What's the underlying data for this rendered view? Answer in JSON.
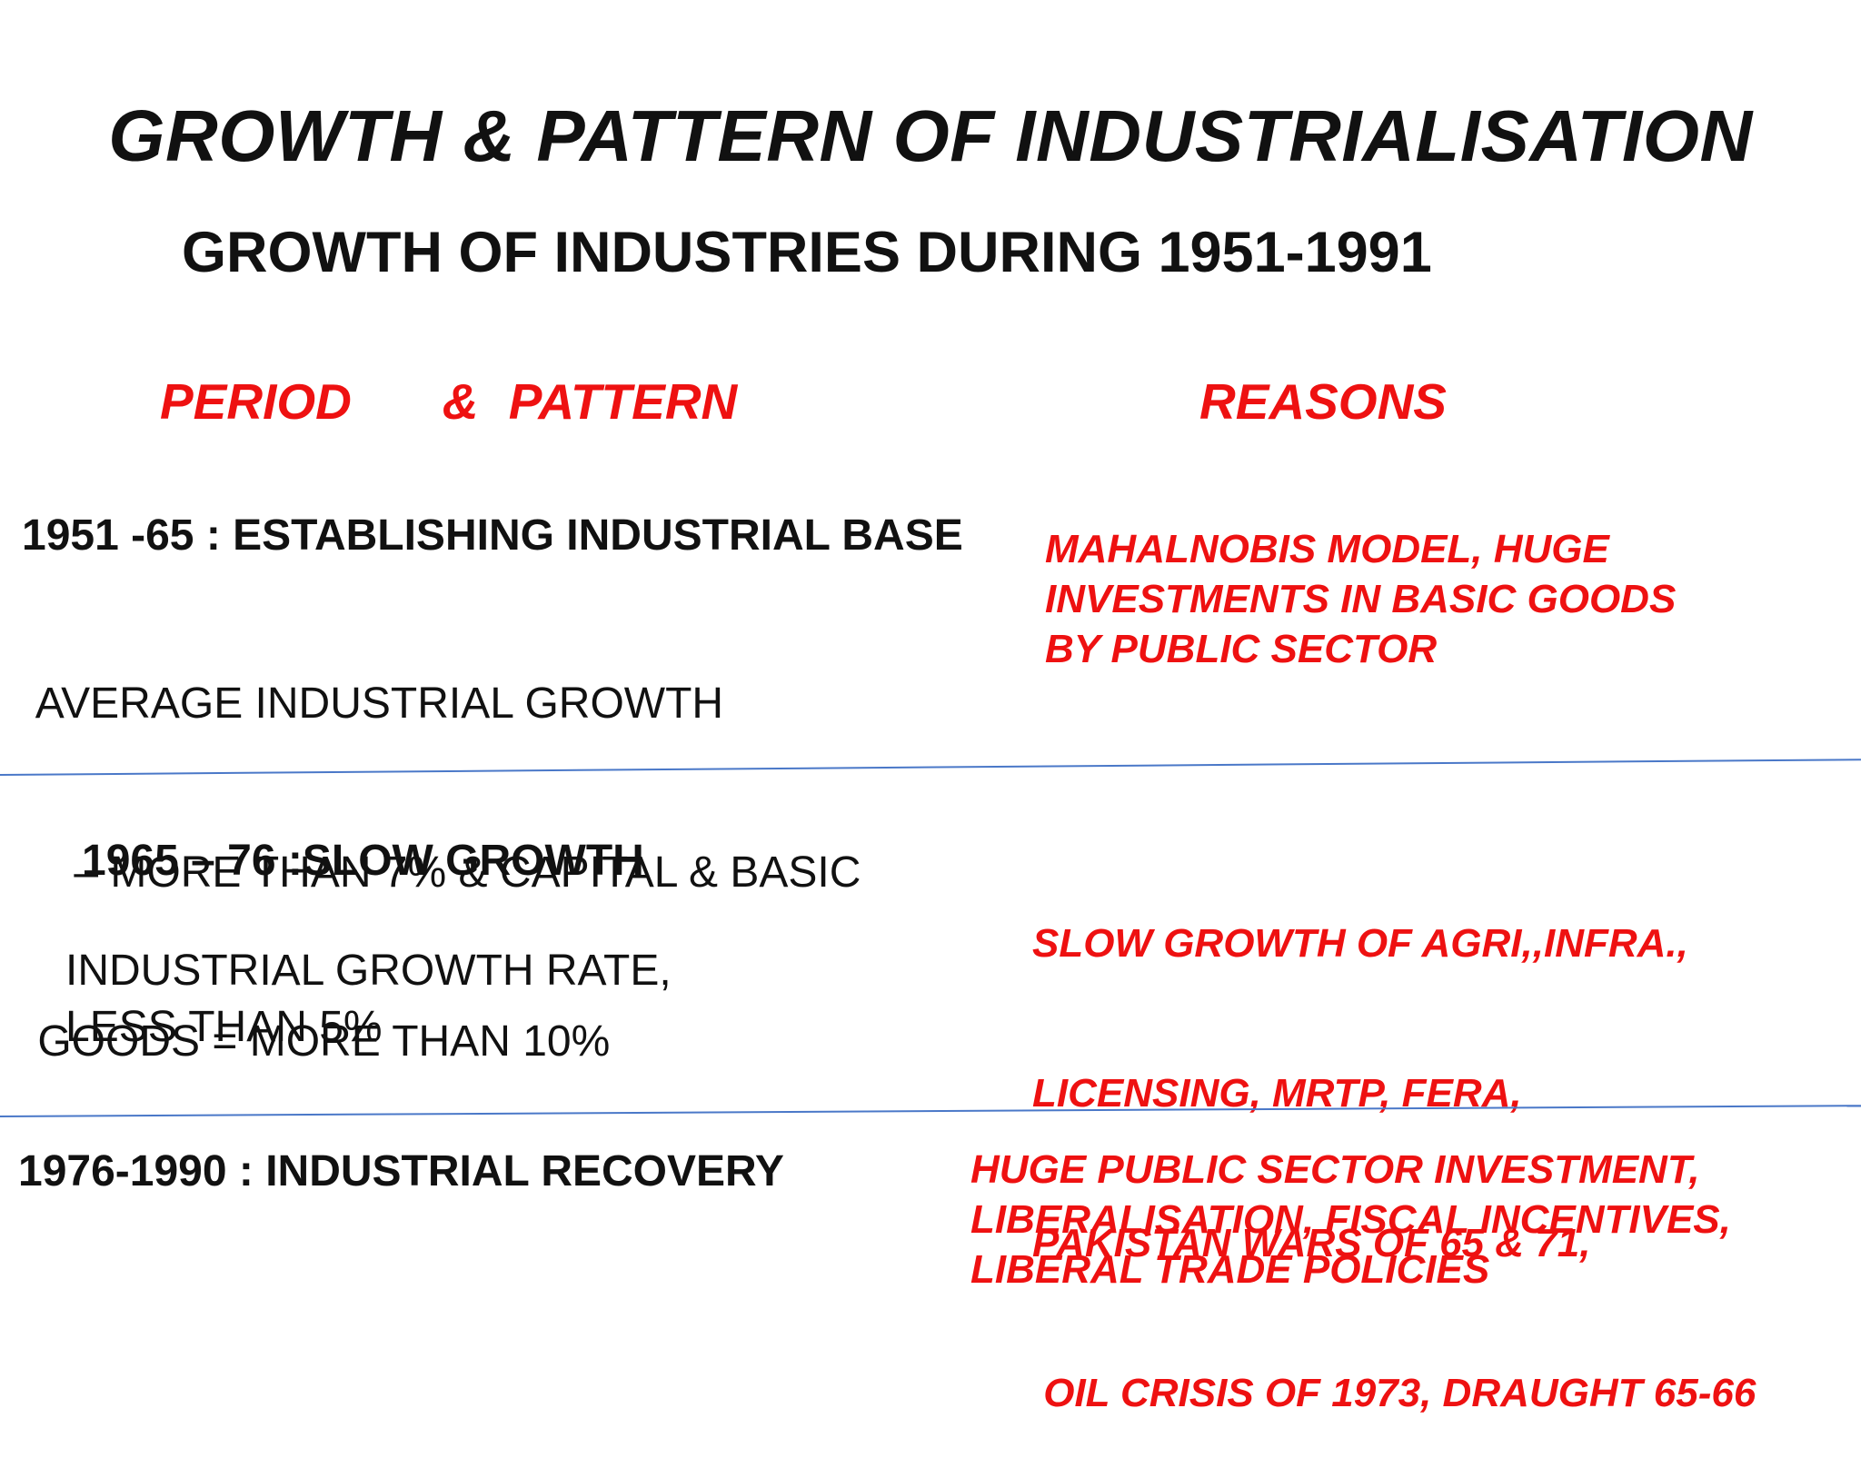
{
  "title": "GROWTH & PATTERN OF INDUSTRIALISATION",
  "subtitle": "GROWTH OF INDUSTRIES DURING 1951-1991",
  "columns": {
    "left": "PERIOD   & PATTERN",
    "right": "REASONS"
  },
  "sections": [
    {
      "heading": "1951 -65 : ESTABLISHING INDUSTRIAL BASE",
      "body": [
        " AVERAGE INDUSTRIAL GROWTH",
        "    – MORE THAN 7% & CAPITAL & BASIC",
        " GOODS = MORE THAN 10%"
      ],
      "reasons": [
        "MAHALNOBIS MODEL, HUGE",
        "INVESTMENTS IN BASIC GOODS",
        "BY PUBLIC SECTOR"
      ]
    },
    {
      "heading": "1965 – 76 :SLOW GROWTH",
      "body": [
        "INDUSTRIAL GROWTH RATE,",
        "LESS THAN 5%"
      ],
      "reasons": [
        "SLOW GROWTH OF AGRI,,INFRA.,",
        "LICENSING, MRTP, FERA,",
        "PAKISTAN WARS OF 65 & 71,",
        " OIL CRISIS OF 1973, DRAUGHT 65-66"
      ]
    },
    {
      "heading": "1976-1990 : INDUSTRIAL RECOVERY",
      "body": [],
      "reasons": [
        "HUGE PUBLIC SECTOR INVESTMENT,",
        "LIBERALISATION, FISCAL INCENTIVES,",
        "LIBERAL TRADE POLICIES"
      ]
    }
  ],
  "colors": {
    "accent": "#ee1111",
    "text": "#111111",
    "divider": "#4a78c8"
  }
}
